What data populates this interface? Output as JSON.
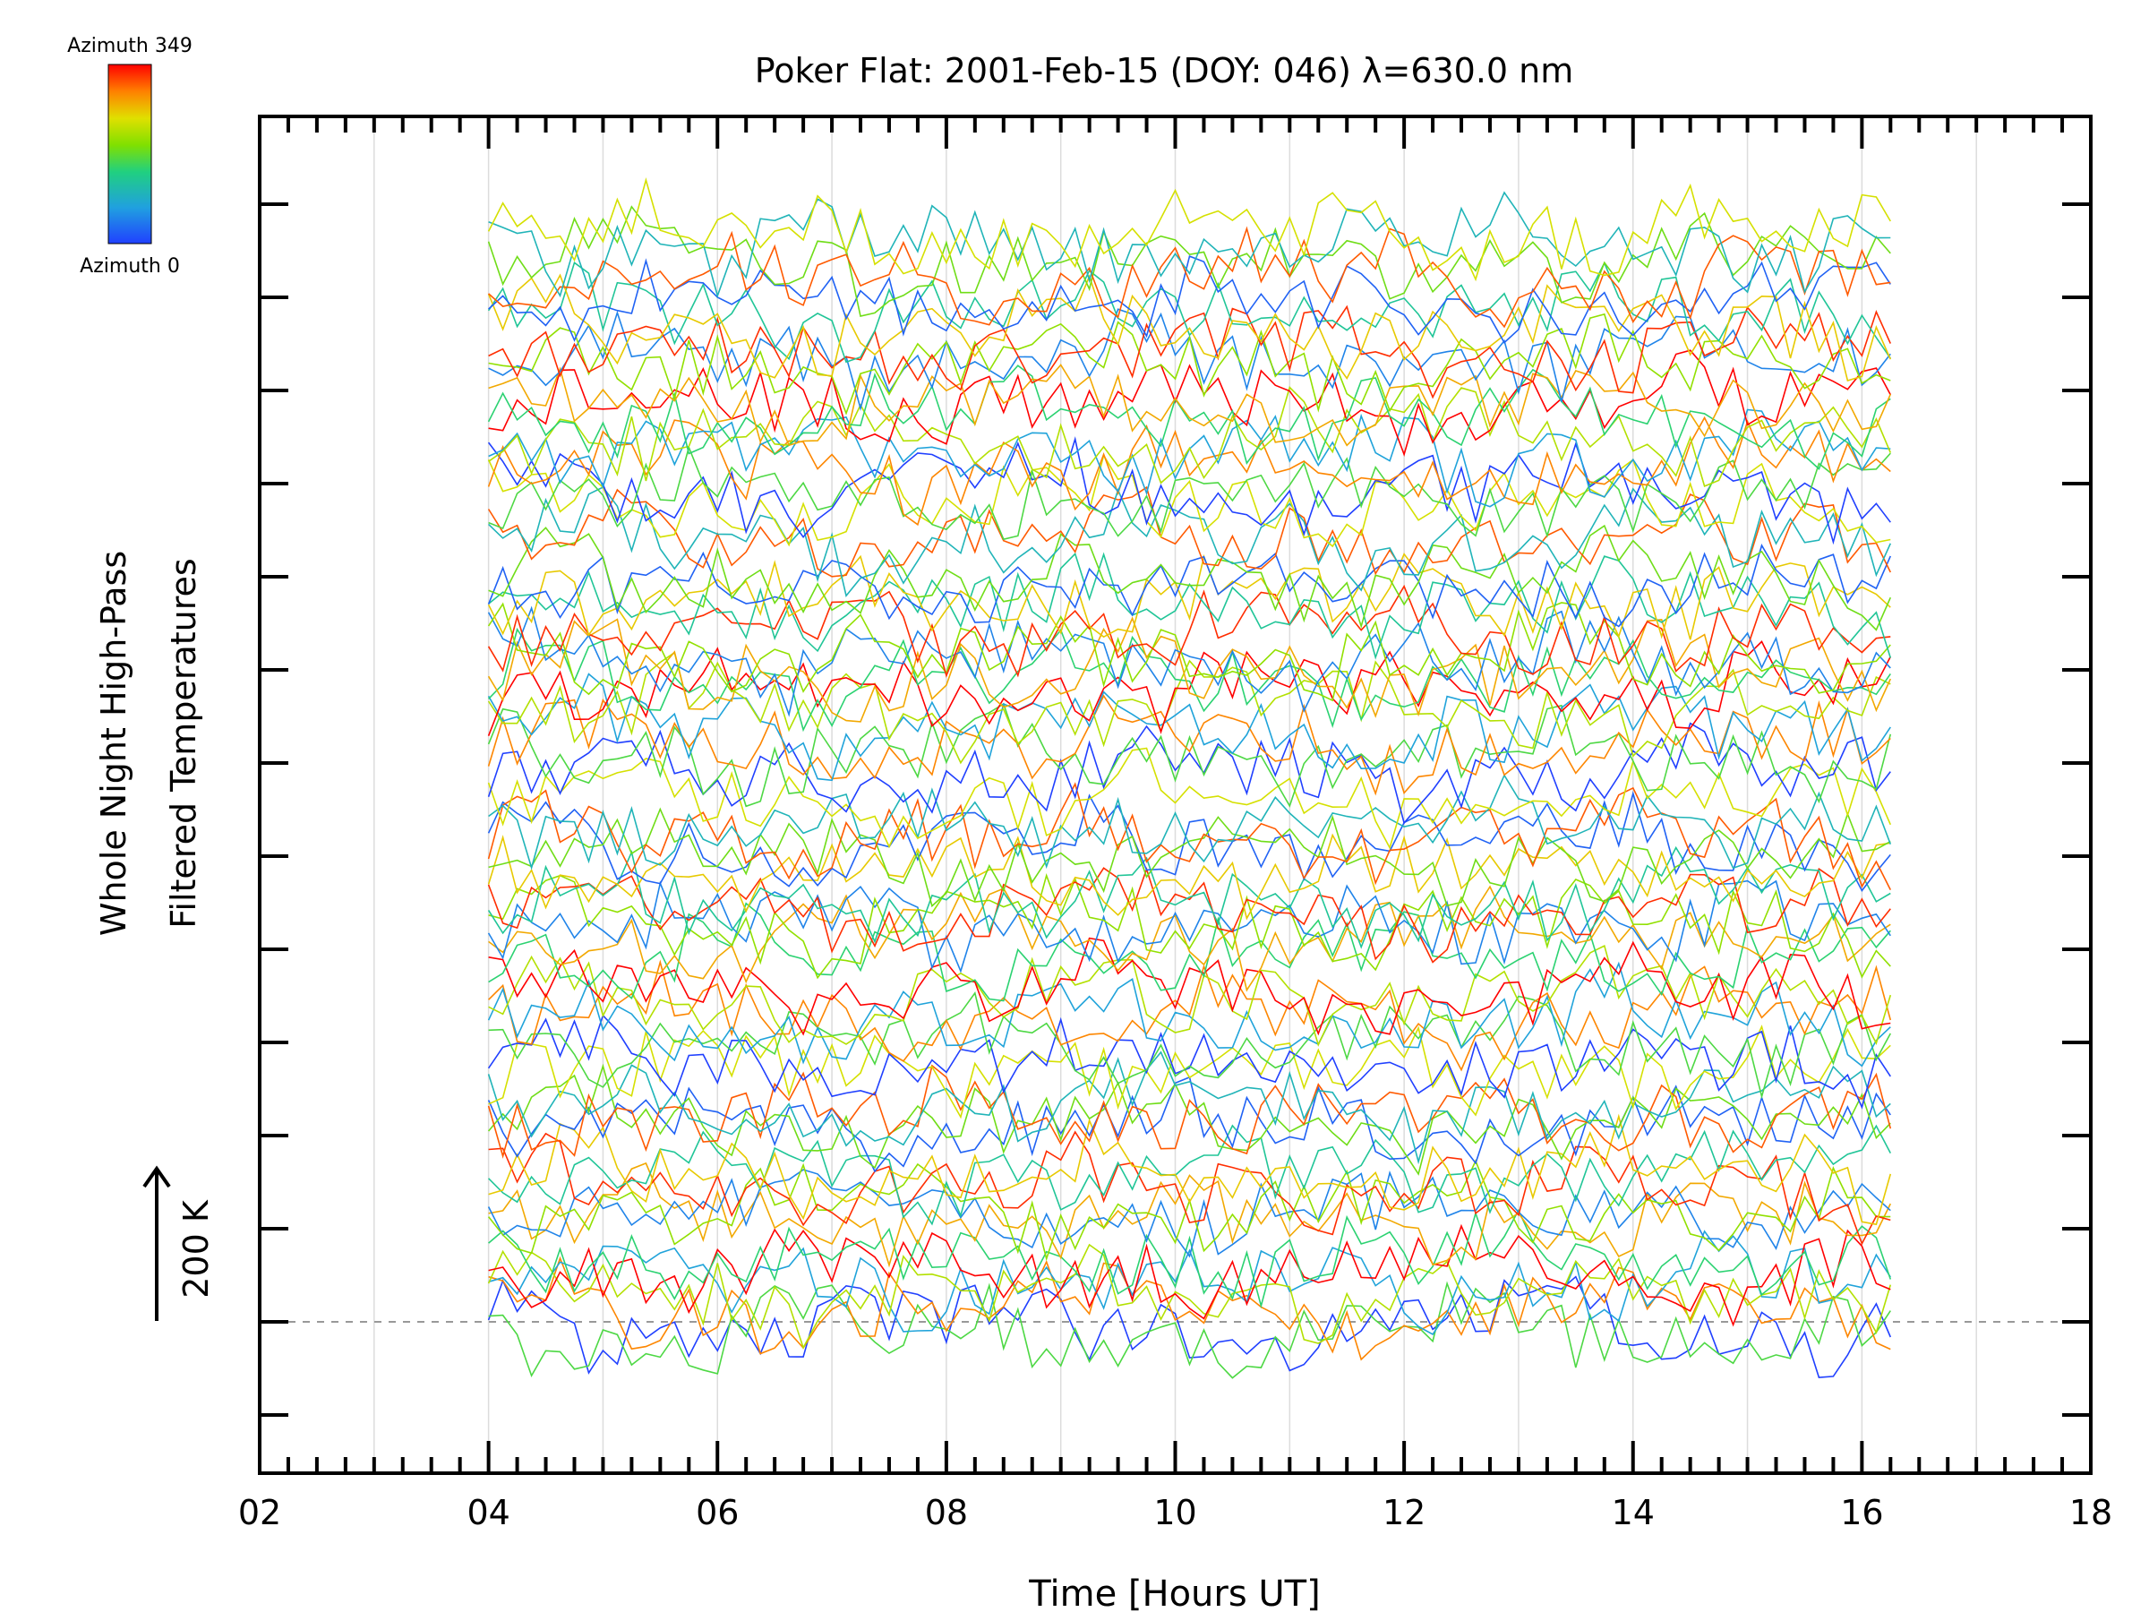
{
  "chart_data": {
    "type": "line",
    "title": "Poker Flat: 2001-Feb-15 (DOY: 046) λ=630.0 nm",
    "xlabel": "Time [Hours UT]",
    "ylabel_line1": "Whole Night High-Pass",
    "ylabel_line2": "Filtered Temperatures",
    "xlim": [
      2,
      18
    ],
    "xticks": [
      "02",
      "04",
      "06",
      "08",
      "10",
      "12",
      "14",
      "16",
      "18"
    ],
    "scale_label": "200 K",
    "colorbar": {
      "top_label": "Azimuth 349",
      "bottom_label": "Azimuth 0",
      "colors": [
        "#ff0000",
        "#ff8000",
        "#e0e000",
        "#80e000",
        "#20d080",
        "#20a0e0",
        "#2040ff"
      ]
    },
    "data_time_range_hours": [
      4.0,
      16.25
    ],
    "series_count": 72,
    "grid": "vertical lines every hour",
    "baseline": "dashed horizontal reference line"
  }
}
